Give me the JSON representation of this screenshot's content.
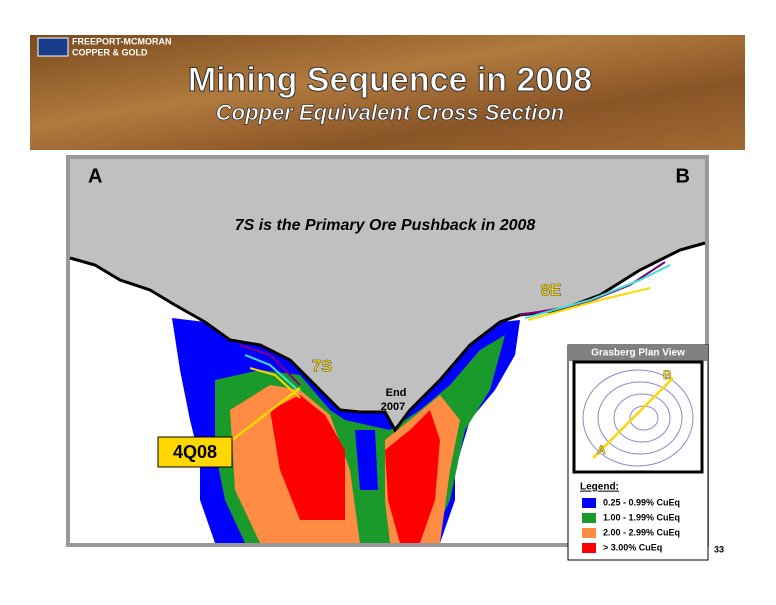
{
  "header": {
    "company": [
      "Freeport-McMoRan",
      "Copper & Gold"
    ],
    "title": "Mining Sequence in 2008",
    "subtitle": "Copper Equivalent Cross Section"
  },
  "section": {
    "left_label": "A",
    "right_label": "B",
    "caption": "7S is the Primary Ore Pushback in 2008",
    "labels": {
      "s7": "7S",
      "e8": "8E",
      "end": "End",
      "end_year": "2007",
      "q408": "4Q08"
    }
  },
  "inset": {
    "title": "Grasberg Plan View",
    "a": "A",
    "b": "B",
    "legend_title": "Legend:",
    "legend": [
      {
        "label": "0.25 - 0.99%  CuEq",
        "color": "#0000ff"
      },
      {
        "label": "1.00 - 1.99%  CuEq",
        "color": "#1a9a2a"
      },
      {
        "label": "2.00 - 2.99%  CuEq",
        "color": "#ff8c42"
      },
      {
        "label": "> 3.00%  CuEq",
        "color": "#ff0000"
      }
    ]
  },
  "page_number": "33"
}
